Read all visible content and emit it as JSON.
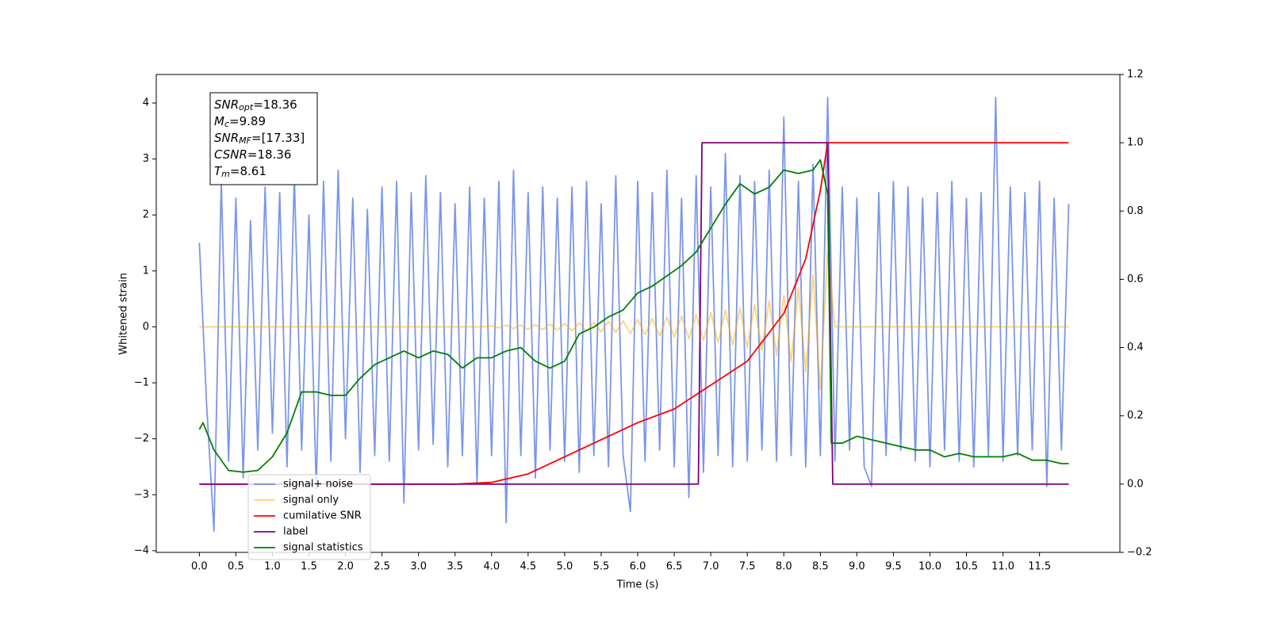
{
  "chart_data": {
    "type": "line",
    "xlabel": "Time (s)",
    "ylabel": "Whitened strain",
    "xlim": [
      -0.59,
      12.6
    ],
    "ylim": [
      -4.03,
      4.51
    ],
    "y2lim": [
      -0.2,
      1.2
    ],
    "xticks": [
      {
        "value": 0,
        "label": "0.0"
      },
      0.5,
      {
        "value": 1,
        "label": "1.0"
      },
      1.5,
      {
        "value": 2,
        "label": "2.0"
      },
      2.5,
      {
        "value": 3,
        "label": "3.0"
      },
      3.5,
      {
        "value": 4,
        "label": "4.0"
      },
      4.5,
      {
        "value": 5,
        "label": "5.0"
      },
      5.5,
      {
        "value": 6,
        "label": "6.0"
      },
      6.5,
      {
        "value": 7,
        "label": "7.0"
      },
      7.5,
      {
        "value": 8,
        "label": "8.0"
      },
      8.5,
      {
        "value": 9,
        "label": "9.0"
      },
      9.5,
      {
        "value": 10,
        "label": "10.0"
      },
      10.5,
      {
        "value": 11,
        "label": "11.0"
      },
      11.5
    ],
    "yticks": [
      {
        "value": -4,
        "label": "−4"
      },
      {
        "value": -3,
        "label": "−3"
      },
      {
        "value": -2,
        "label": "−2"
      },
      {
        "value": -1,
        "label": "−1"
      },
      0,
      1,
      2,
      3,
      4
    ],
    "y2ticks": [
      {
        "value": -0.2,
        "label": "−0.2"
      },
      {
        "value": 0,
        "label": "0.0"
      },
      0.2,
      0.4,
      0.6,
      0.8,
      {
        "value": 1,
        "label": "1.0"
      },
      1.2
    ],
    "legend": "lower left",
    "annotations": [
      {
        "symbol": "SNR",
        "subscript": "opt",
        "text": "=18.36"
      },
      {
        "symbol": "M",
        "subscript": "c",
        "text": "=9.89"
      },
      {
        "symbol": "SNR",
        "subscript": "MF",
        "text": "=[17.33]"
      },
      {
        "symbol": "CSNR",
        "text": "=18.36"
      },
      {
        "symbol": "T",
        "subscript": "m",
        "text": "=8.61"
      }
    ],
    "series": [
      {
        "name": "signal+ noise",
        "color": "#4169e1",
        "alpha": 0.7,
        "axis": "y",
        "x": [
          0.0,
          0.1,
          0.2,
          0.3,
          0.4,
          0.5,
          0.6,
          0.7,
          0.8,
          0.9,
          1.0,
          1.1,
          1.2,
          1.3,
          1.4,
          1.5,
          1.6,
          1.7,
          1.8,
          1.9,
          2.0,
          2.1,
          2.2,
          2.3,
          2.4,
          2.5,
          2.6,
          2.7,
          2.8,
          2.9,
          3.0,
          3.1,
          3.2,
          3.3,
          3.4,
          3.5,
          3.6,
          3.7,
          3.8,
          3.9,
          4.0,
          4.1,
          4.2,
          4.3,
          4.4,
          4.5,
          4.6,
          4.7,
          4.8,
          4.9,
          5.0,
          5.1,
          5.2,
          5.3,
          5.4,
          5.5,
          5.6,
          5.7,
          5.8,
          5.9,
          6.0,
          6.1,
          6.2,
          6.3,
          6.4,
          6.5,
          6.6,
          6.7,
          6.8,
          6.9,
          7.0,
          7.1,
          7.2,
          7.3,
          7.4,
          7.5,
          7.6,
          7.7,
          7.8,
          7.9,
          8.0,
          8.1,
          8.2,
          8.3,
          8.4,
          8.5,
          8.6,
          8.7,
          8.8,
          8.9,
          9.0,
          9.1,
          9.2,
          9.3,
          9.4,
          9.5,
          9.6,
          9.7,
          9.8,
          9.9,
          10.0,
          10.1,
          10.2,
          10.3,
          10.4,
          10.5,
          10.6,
          10.7,
          10.8,
          10.9,
          11.0,
          11.1,
          11.2,
          11.3,
          11.4,
          11.5,
          11.6,
          11.7,
          11.8,
          11.9
        ],
        "values": [
          1.5,
          -1.4,
          -3.65,
          2.6,
          -2.4,
          2.3,
          -2.7,
          1.9,
          -2.2,
          2.5,
          -1.9,
          2.4,
          -2.5,
          2.7,
          -2.2,
          2.0,
          -2.9,
          2.6,
          -2.4,
          2.8,
          -2.0,
          2.3,
          -2.6,
          2.1,
          -2.3,
          2.5,
          -2.4,
          2.6,
          -3.15,
          2.4,
          -2.2,
          2.7,
          -2.1,
          2.4,
          -2.5,
          2.2,
          -2.3,
          2.5,
          -2.8,
          2.3,
          -2.3,
          2.6,
          -3.5,
          2.8,
          -2.3,
          2.4,
          -2.7,
          2.5,
          -2.2,
          2.3,
          -2.4,
          2.5,
          -2.6,
          2.6,
          -2.3,
          2.2,
          -2.5,
          2.7,
          -2.3,
          -3.3,
          2.6,
          -2.4,
          2.4,
          -2.2,
          2.8,
          -2.5,
          2.3,
          -3.05,
          2.7,
          -2.6,
          2.5,
          -2.3,
          3.1,
          -2.5,
          2.7,
          -2.4,
          2.6,
          -2.2,
          2.8,
          -2.4,
          3.75,
          -2.3,
          2.6,
          -2.5,
          2.9,
          -2.3,
          4.1,
          -2.4,
          2.5,
          -2.2,
          2.3,
          -2.5,
          -2.85,
          2.4,
          -2.3,
          2.6,
          -2.2,
          2.5,
          -2.4,
          2.3,
          -2.5,
          2.4,
          -2.2,
          2.6,
          -2.4,
          2.3,
          -2.5,
          2.4,
          -2.3,
          4.1,
          -2.4,
          2.5,
          -2.3,
          2.4,
          -2.2,
          2.6,
          -2.85,
          2.3,
          -2.2,
          2.2
        ]
      },
      {
        "name": "signal only",
        "color": "#ffa500",
        "alpha": 0.5,
        "axis": "y",
        "x": [
          0,
          3.9,
          4.0,
          4.1,
          4.2,
          4.3,
          4.4,
          4.5,
          4.6,
          4.7,
          4.8,
          4.9,
          5.0,
          5.1,
          5.2,
          5.3,
          5.4,
          5.5,
          5.6,
          5.7,
          5.8,
          5.9,
          6.0,
          6.1,
          6.2,
          6.3,
          6.4,
          6.5,
          6.6,
          6.7,
          6.8,
          6.9,
          7.0,
          7.1,
          7.2,
          7.3,
          7.4,
          7.5,
          7.6,
          7.7,
          7.8,
          7.9,
          8.0,
          8.1,
          8.2,
          8.3,
          8.4,
          8.5,
          8.6,
          8.7,
          11.9
        ],
        "values": [
          0,
          0,
          0.02,
          -0.02,
          0.03,
          -0.03,
          0.03,
          -0.04,
          0.04,
          -0.05,
          0.05,
          -0.06,
          0.06,
          -0.07,
          0.07,
          -0.08,
          0.08,
          -0.09,
          0.1,
          -0.1,
          0.11,
          -0.12,
          0.13,
          -0.14,
          0.15,
          -0.16,
          0.17,
          -0.18,
          0.19,
          -0.21,
          0.22,
          -0.24,
          0.26,
          -0.28,
          0.3,
          -0.32,
          0.34,
          -0.37,
          0.4,
          -0.43,
          0.47,
          -0.51,
          0.56,
          -0.62,
          0.7,
          -0.8,
          0.93,
          -1.12,
          1.35,
          0,
          0
        ]
      },
      {
        "name": "cumilative SNR",
        "color": "red",
        "alpha": 1,
        "axis": "y2",
        "x": [
          0,
          3.5,
          4.0,
          4.5,
          5.0,
          5.5,
          6.0,
          6.5,
          7.0,
          7.5,
          8.0,
          8.3,
          8.5,
          8.6,
          11.9
        ],
        "values": [
          0,
          0,
          0.005,
          0.03,
          0.08,
          0.13,
          0.18,
          0.22,
          0.29,
          0.36,
          0.5,
          0.66,
          0.86,
          1.0,
          1.0
        ]
      },
      {
        "name": "label",
        "color": "purple",
        "alpha": 1,
        "axis": "y2",
        "x": [
          0,
          6.83,
          6.88,
          8.6,
          8.67,
          11.9
        ],
        "values": [
          0,
          0,
          1,
          1,
          0,
          0
        ]
      },
      {
        "name": "signal statistics",
        "color": "green",
        "alpha": 1,
        "axis": "y2",
        "x": [
          0,
          0.05,
          0.2,
          0.4,
          0.6,
          0.8,
          1.0,
          1.2,
          1.4,
          1.6,
          1.8,
          2.0,
          2.2,
          2.4,
          2.6,
          2.8,
          3.0,
          3.2,
          3.4,
          3.6,
          3.8,
          4.0,
          4.2,
          4.4,
          4.6,
          4.8,
          5.0,
          5.2,
          5.4,
          5.6,
          5.8,
          6.0,
          6.2,
          6.4,
          6.6,
          6.8,
          7.0,
          7.2,
          7.4,
          7.6,
          7.8,
          8.0,
          8.2,
          8.4,
          8.5,
          8.6,
          8.65,
          8.8,
          9.0,
          9.2,
          9.4,
          9.6,
          9.8,
          10.0,
          10.2,
          10.4,
          10.6,
          10.8,
          11.0,
          11.2,
          11.4,
          11.6,
          11.8,
          11.9
        ],
        "values": [
          0.16,
          0.18,
          0.1,
          0.04,
          0.035,
          0.04,
          0.08,
          0.15,
          0.27,
          0.27,
          0.26,
          0.26,
          0.31,
          0.35,
          0.37,
          0.39,
          0.37,
          0.39,
          0.38,
          0.34,
          0.37,
          0.37,
          0.39,
          0.4,
          0.36,
          0.34,
          0.36,
          0.44,
          0.46,
          0.49,
          0.51,
          0.56,
          0.58,
          0.61,
          0.64,
          0.68,
          0.75,
          0.82,
          0.88,
          0.85,
          0.87,
          0.92,
          0.91,
          0.92,
          0.95,
          0.85,
          0.12,
          0.12,
          0.14,
          0.13,
          0.12,
          0.11,
          0.1,
          0.1,
          0.08,
          0.09,
          0.08,
          0.08,
          0.08,
          0.09,
          0.07,
          0.07,
          0.06,
          0.06
        ]
      }
    ]
  }
}
